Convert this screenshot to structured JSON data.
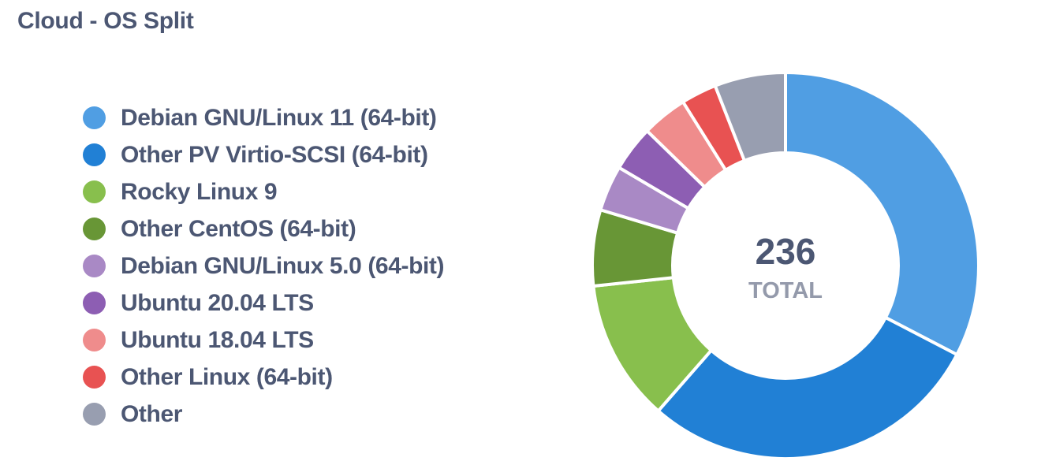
{
  "card": {
    "title": "Cloud - OS Split"
  },
  "chart_data": {
    "type": "pie",
    "variant": "donut",
    "title": "Cloud - OS Split",
    "legend_position": "left",
    "total": {
      "value": "236",
      "label": "TOTAL"
    },
    "slices": [
      {
        "name": "Debian GNU/Linux 11 (64-bit)",
        "value": 77,
        "color": "#509ee3"
      },
      {
        "name": "Other PV Virtio-SCSI (64-bit)",
        "value": 68,
        "color": "#2180d5"
      },
      {
        "name": "Rocky Linux 9",
        "value": 28,
        "color": "#88bf4d"
      },
      {
        "name": "Other CentOS (64-bit)",
        "value": 15,
        "color": "#689636"
      },
      {
        "name": "Debian GNU/Linux 5.0 (64-bit)",
        "value": 9,
        "color": "#a989c5"
      },
      {
        "name": "Ubuntu 20.04 LTS",
        "value": 9,
        "color": "#8d5eb3"
      },
      {
        "name": "Ubuntu 18.04 LTS",
        "value": 9,
        "color": "#ef8c8c"
      },
      {
        "name": "Other Linux (64-bit)",
        "value": 7,
        "color": "#e85252"
      },
      {
        "name": "Other",
        "value": 14,
        "color": "#989eb0"
      }
    ]
  }
}
